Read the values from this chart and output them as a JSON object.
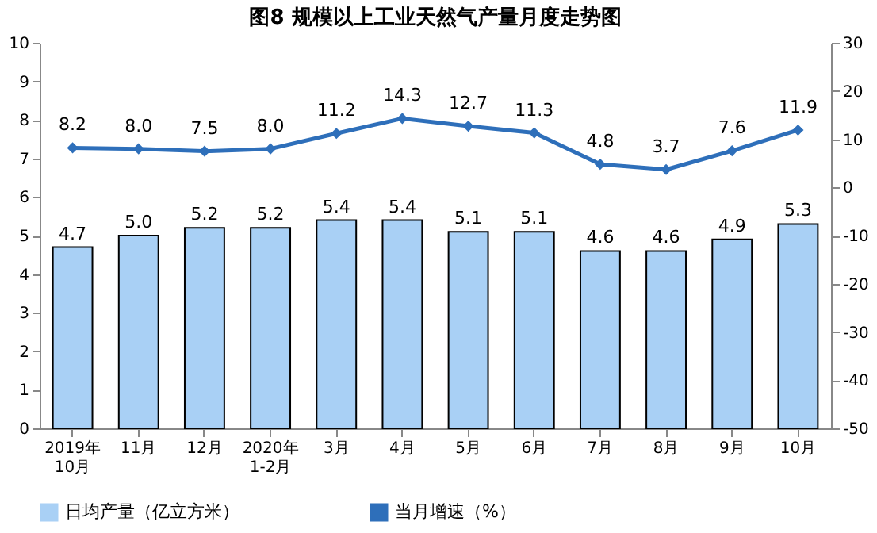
{
  "chart_data": {
    "type": "bar",
    "title": "图8  规模以上工业天然气产量月度走势图",
    "categories": [
      "2019年\n10月",
      "11月",
      "12月",
      "2020年\n1-2月",
      "3月",
      "4月",
      "5月",
      "6月",
      "7月",
      "8月",
      "9月",
      "10月"
    ],
    "series": [
      {
        "name": "日均产量（亿立方米）",
        "color": "#a9d0f5",
        "values": [
          4.7,
          5.0,
          5.2,
          5.2,
          5.4,
          5.4,
          5.1,
          5.1,
          4.6,
          4.6,
          4.9,
          5.3
        ],
        "value_labels": [
          "4.7",
          "5.0",
          "5.2",
          "5.2",
          "5.4",
          "5.4",
          "5.1",
          "5.1",
          "4.6",
          "4.6",
          "4.9",
          "5.3"
        ]
      },
      {
        "name": "当月增速（%）",
        "type": "line",
        "axis": "y2",
        "color": "#2e6fba",
        "marker": "diamond",
        "values": [
          8.2,
          8.0,
          7.5,
          8.0,
          11.2,
          14.3,
          12.7,
          11.3,
          4.8,
          3.7,
          7.6,
          11.9
        ],
        "value_labels": [
          "8.2",
          "8.0",
          "7.5",
          "8.0",
          "11.2",
          "14.3",
          "12.7",
          "11.3",
          "4.8",
          "3.7",
          "7.6",
          "11.9"
        ]
      }
    ],
    "ylim": [
      0,
      10
    ],
    "yticks": [
      0,
      1,
      2,
      3,
      4,
      5,
      6,
      7,
      8,
      9,
      10
    ],
    "y2lim": [
      -50,
      30
    ],
    "y2ticks": [
      -50,
      -40,
      -30,
      -20,
      -10,
      0,
      10,
      20,
      30
    ],
    "grid": false,
    "legend": "bottom"
  }
}
